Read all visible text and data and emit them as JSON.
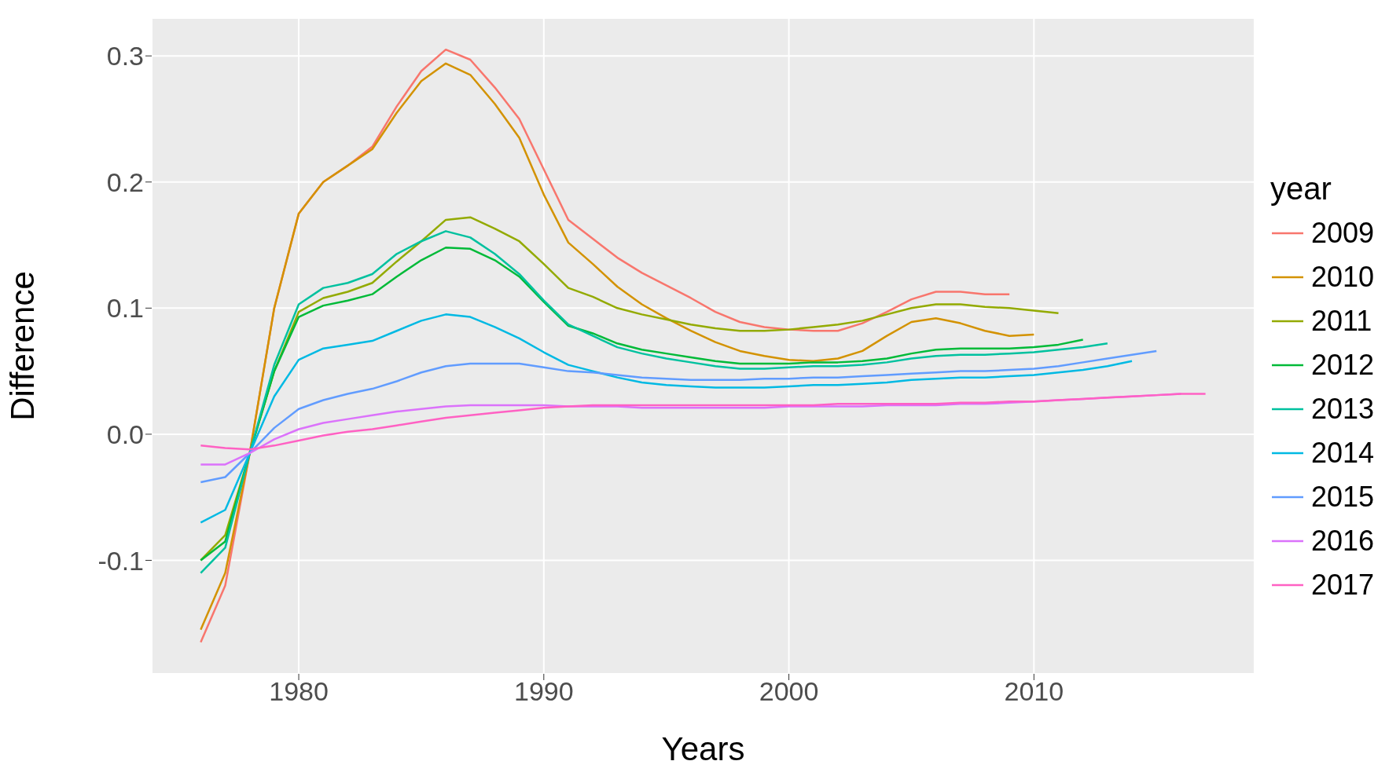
{
  "chart_data": {
    "type": "line",
    "xlabel": "Years",
    "ylabel": "Difference",
    "legend_title": "year",
    "legend": "right",
    "grid": true,
    "xlim": [
      1974,
      2019
    ],
    "xticks": [
      1980,
      1990,
      2000,
      2010
    ],
    "ylim": [
      -0.19,
      0.33
    ],
    "yticks": [
      -0.1,
      {
        "value": 0,
        "label": "0.0"
      },
      0.1,
      0.2,
      0.3
    ],
    "x": [
      1976,
      1977,
      1978,
      1979,
      1980,
      1981,
      1982,
      1983,
      1984,
      1985,
      1986,
      1987,
      1988,
      1989,
      1990,
      1991,
      1992,
      1993,
      1994,
      1995,
      1996,
      1997,
      1998,
      1999,
      2000,
      2001,
      2002,
      2003,
      2004,
      2005,
      2006,
      2007,
      2008,
      2009,
      2010,
      2011,
      2012,
      2013,
      2014,
      2015,
      2016,
      2017
    ],
    "series": [
      {
        "name": "2009",
        "color": "#f8766d",
        "values": [
          -0.165,
          -0.12,
          -0.015,
          0.1,
          0.175,
          0.2,
          0.213,
          0.228,
          0.26,
          0.288,
          0.305,
          0.297,
          0.275,
          0.25,
          0.21,
          0.17,
          0.155,
          0.14,
          0.128,
          0.118,
          0.108,
          0.097,
          0.089,
          0.085,
          0.083,
          0.082,
          0.082,
          0.088,
          0.097,
          0.107,
          0.113,
          0.113,
          0.111,
          0.111,
          null,
          null,
          null,
          null,
          null,
          null,
          null,
          null
        ]
      },
      {
        "name": "2010",
        "color": "#d39200",
        "values": [
          -0.155,
          -0.11,
          -0.015,
          0.1,
          0.175,
          0.2,
          0.213,
          0.226,
          0.255,
          0.28,
          0.294,
          0.285,
          0.262,
          0.235,
          0.19,
          0.152,
          0.135,
          0.117,
          0.103,
          0.092,
          0.082,
          0.073,
          0.066,
          0.062,
          0.059,
          0.058,
          0.06,
          0.066,
          0.078,
          0.089,
          0.092,
          0.088,
          0.082,
          0.078,
          0.079,
          null,
          null,
          null,
          null,
          null,
          null,
          null
        ]
      },
      {
        "name": "2011",
        "color": "#93aa00",
        "values": [
          -0.1,
          -0.08,
          -0.015,
          0.05,
          0.097,
          0.108,
          0.113,
          0.12,
          0.137,
          0.153,
          0.17,
          0.172,
          0.163,
          0.153,
          0.135,
          0.116,
          0.109,
          0.1,
          0.095,
          0.091,
          0.087,
          0.084,
          0.082,
          0.082,
          0.083,
          0.085,
          0.087,
          0.09,
          0.095,
          0.1,
          0.103,
          0.103,
          0.101,
          0.1,
          0.098,
          0.096,
          null,
          null,
          null,
          null,
          null,
          null
        ]
      },
      {
        "name": "2012",
        "color": "#00ba38",
        "values": [
          -0.1,
          -0.085,
          -0.015,
          0.05,
          0.093,
          0.102,
          0.106,
          0.111,
          0.125,
          0.138,
          0.148,
          0.147,
          0.138,
          0.125,
          0.105,
          0.086,
          0.08,
          0.072,
          0.067,
          0.064,
          0.061,
          0.058,
          0.056,
          0.056,
          0.056,
          0.057,
          0.057,
          0.058,
          0.06,
          0.064,
          0.067,
          0.068,
          0.068,
          0.068,
          0.069,
          0.071,
          0.075,
          null,
          null,
          null,
          null,
          null
        ]
      },
      {
        "name": "2013",
        "color": "#00c19f",
        "values": [
          -0.11,
          -0.09,
          -0.015,
          0.055,
          0.103,
          0.116,
          0.12,
          0.127,
          0.143,
          0.153,
          0.161,
          0.156,
          0.143,
          0.127,
          0.106,
          0.087,
          0.078,
          0.069,
          0.064,
          0.06,
          0.057,
          0.054,
          0.052,
          0.052,
          0.053,
          0.054,
          0.054,
          0.055,
          0.057,
          0.06,
          0.062,
          0.063,
          0.063,
          0.064,
          0.065,
          0.067,
          0.069,
          0.072,
          null,
          null,
          null,
          null
        ]
      },
      {
        "name": "2014",
        "color": "#00b9e3",
        "values": [
          -0.07,
          -0.06,
          -0.015,
          0.03,
          0.059,
          0.068,
          0.071,
          0.074,
          0.082,
          0.09,
          0.095,
          0.093,
          0.085,
          0.076,
          0.065,
          0.055,
          0.05,
          0.045,
          0.041,
          0.039,
          0.038,
          0.037,
          0.037,
          0.037,
          0.038,
          0.039,
          0.039,
          0.04,
          0.041,
          0.043,
          0.044,
          0.045,
          0.045,
          0.046,
          0.047,
          0.049,
          0.051,
          0.054,
          0.058,
          null,
          null,
          null
        ]
      },
      {
        "name": "2015",
        "color": "#619cff",
        "values": [
          -0.038,
          -0.034,
          -0.015,
          0.005,
          0.02,
          0.027,
          0.032,
          0.036,
          0.042,
          0.049,
          0.054,
          0.056,
          0.056,
          0.056,
          0.053,
          0.05,
          0.049,
          0.047,
          0.045,
          0.044,
          0.043,
          0.043,
          0.043,
          0.044,
          0.044,
          0.045,
          0.045,
          0.046,
          0.047,
          0.048,
          0.049,
          0.05,
          0.05,
          0.051,
          0.052,
          0.054,
          0.057,
          0.06,
          0.063,
          0.066,
          null,
          null
        ]
      },
      {
        "name": "2016",
        "color": "#db72fb",
        "values": [
          -0.024,
          -0.024,
          -0.015,
          -0.004,
          0.004,
          0.009,
          0.012,
          0.015,
          0.018,
          0.02,
          0.022,
          0.023,
          0.023,
          0.023,
          0.023,
          0.022,
          0.022,
          0.022,
          0.021,
          0.021,
          0.021,
          0.021,
          0.021,
          0.021,
          0.022,
          0.022,
          0.022,
          0.022,
          0.023,
          0.023,
          0.023,
          0.024,
          0.024,
          0.025,
          0.026,
          0.027,
          0.028,
          0.029,
          0.03,
          0.031,
          0.032,
          null
        ]
      },
      {
        "name": "2017",
        "color": "#ff61c3",
        "values": [
          -0.009,
          -0.011,
          -0.012,
          -0.009,
          -0.005,
          -0.001,
          0.002,
          0.004,
          0.007,
          0.01,
          0.013,
          0.015,
          0.017,
          0.019,
          0.021,
          0.022,
          0.023,
          0.023,
          0.023,
          0.023,
          0.023,
          0.023,
          0.023,
          0.023,
          0.023,
          0.023,
          0.024,
          0.024,
          0.024,
          0.024,
          0.024,
          0.025,
          0.025,
          0.026,
          0.026,
          0.027,
          0.028,
          0.029,
          0.03,
          0.031,
          0.032,
          0.032
        ]
      }
    ]
  }
}
